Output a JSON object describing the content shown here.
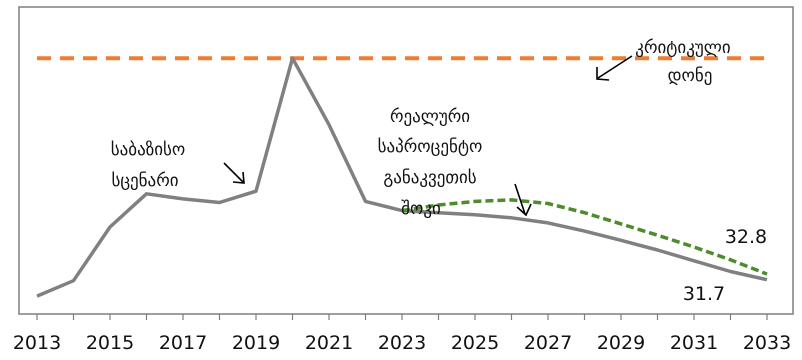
{
  "chart_data": {
    "type": "line",
    "x": [
      2013,
      2014,
      2015,
      2016,
      2017,
      2018,
      2019,
      2020,
      2021,
      2022,
      2023,
      2024,
      2025,
      2026,
      2027,
      2028,
      2029,
      2030,
      2031,
      2032,
      2033
    ],
    "xticks": [
      "2013",
      "2015",
      "2017",
      "2019",
      "2021",
      "2023",
      "2025",
      "2027",
      "2029",
      "2031",
      "2033"
    ],
    "xlim": [
      2013,
      2033
    ],
    "ylim": [
      25,
      85
    ],
    "grid": false,
    "legend": "none",
    "series": [
      {
        "key": "baseline",
        "color": "#808080",
        "style": "solid",
        "values": [
          28.5,
          31.5,
          42.0,
          48.5,
          47.5,
          46.8,
          49.0,
          75.0,
          62.0,
          47.0,
          45.2,
          44.8,
          44.4,
          43.8,
          42.8,
          41.2,
          39.4,
          37.5,
          35.4,
          33.3,
          31.7
        ]
      },
      {
        "key": "shock",
        "color": "#4e8b2c",
        "style": "dashed",
        "x": [
          2023,
          2024,
          2025,
          2026,
          2027,
          2028,
          2029,
          2030,
          2031,
          2032,
          2033
        ],
        "values": [
          45.2,
          46.3,
          47.0,
          47.3,
          46.6,
          44.8,
          42.6,
          40.4,
          38.1,
          35.6,
          32.8
        ]
      },
      {
        "key": "critical",
        "color": "#ed7d31",
        "style": "dashed",
        "x": [
          2013,
          2033
        ],
        "values": [
          75.0,
          75.0
        ]
      }
    ],
    "annotations": {
      "critical": [
        "კრიტიკული",
        "დონე"
      ],
      "baseline": [
        "საბაზისო",
        "სცენარი"
      ],
      "shock": [
        "რეალური",
        "საპროცენტო",
        "განაკვეთის",
        "შოკი"
      ]
    },
    "end_labels": {
      "shock": "32.8",
      "baseline": "31.7"
    }
  }
}
